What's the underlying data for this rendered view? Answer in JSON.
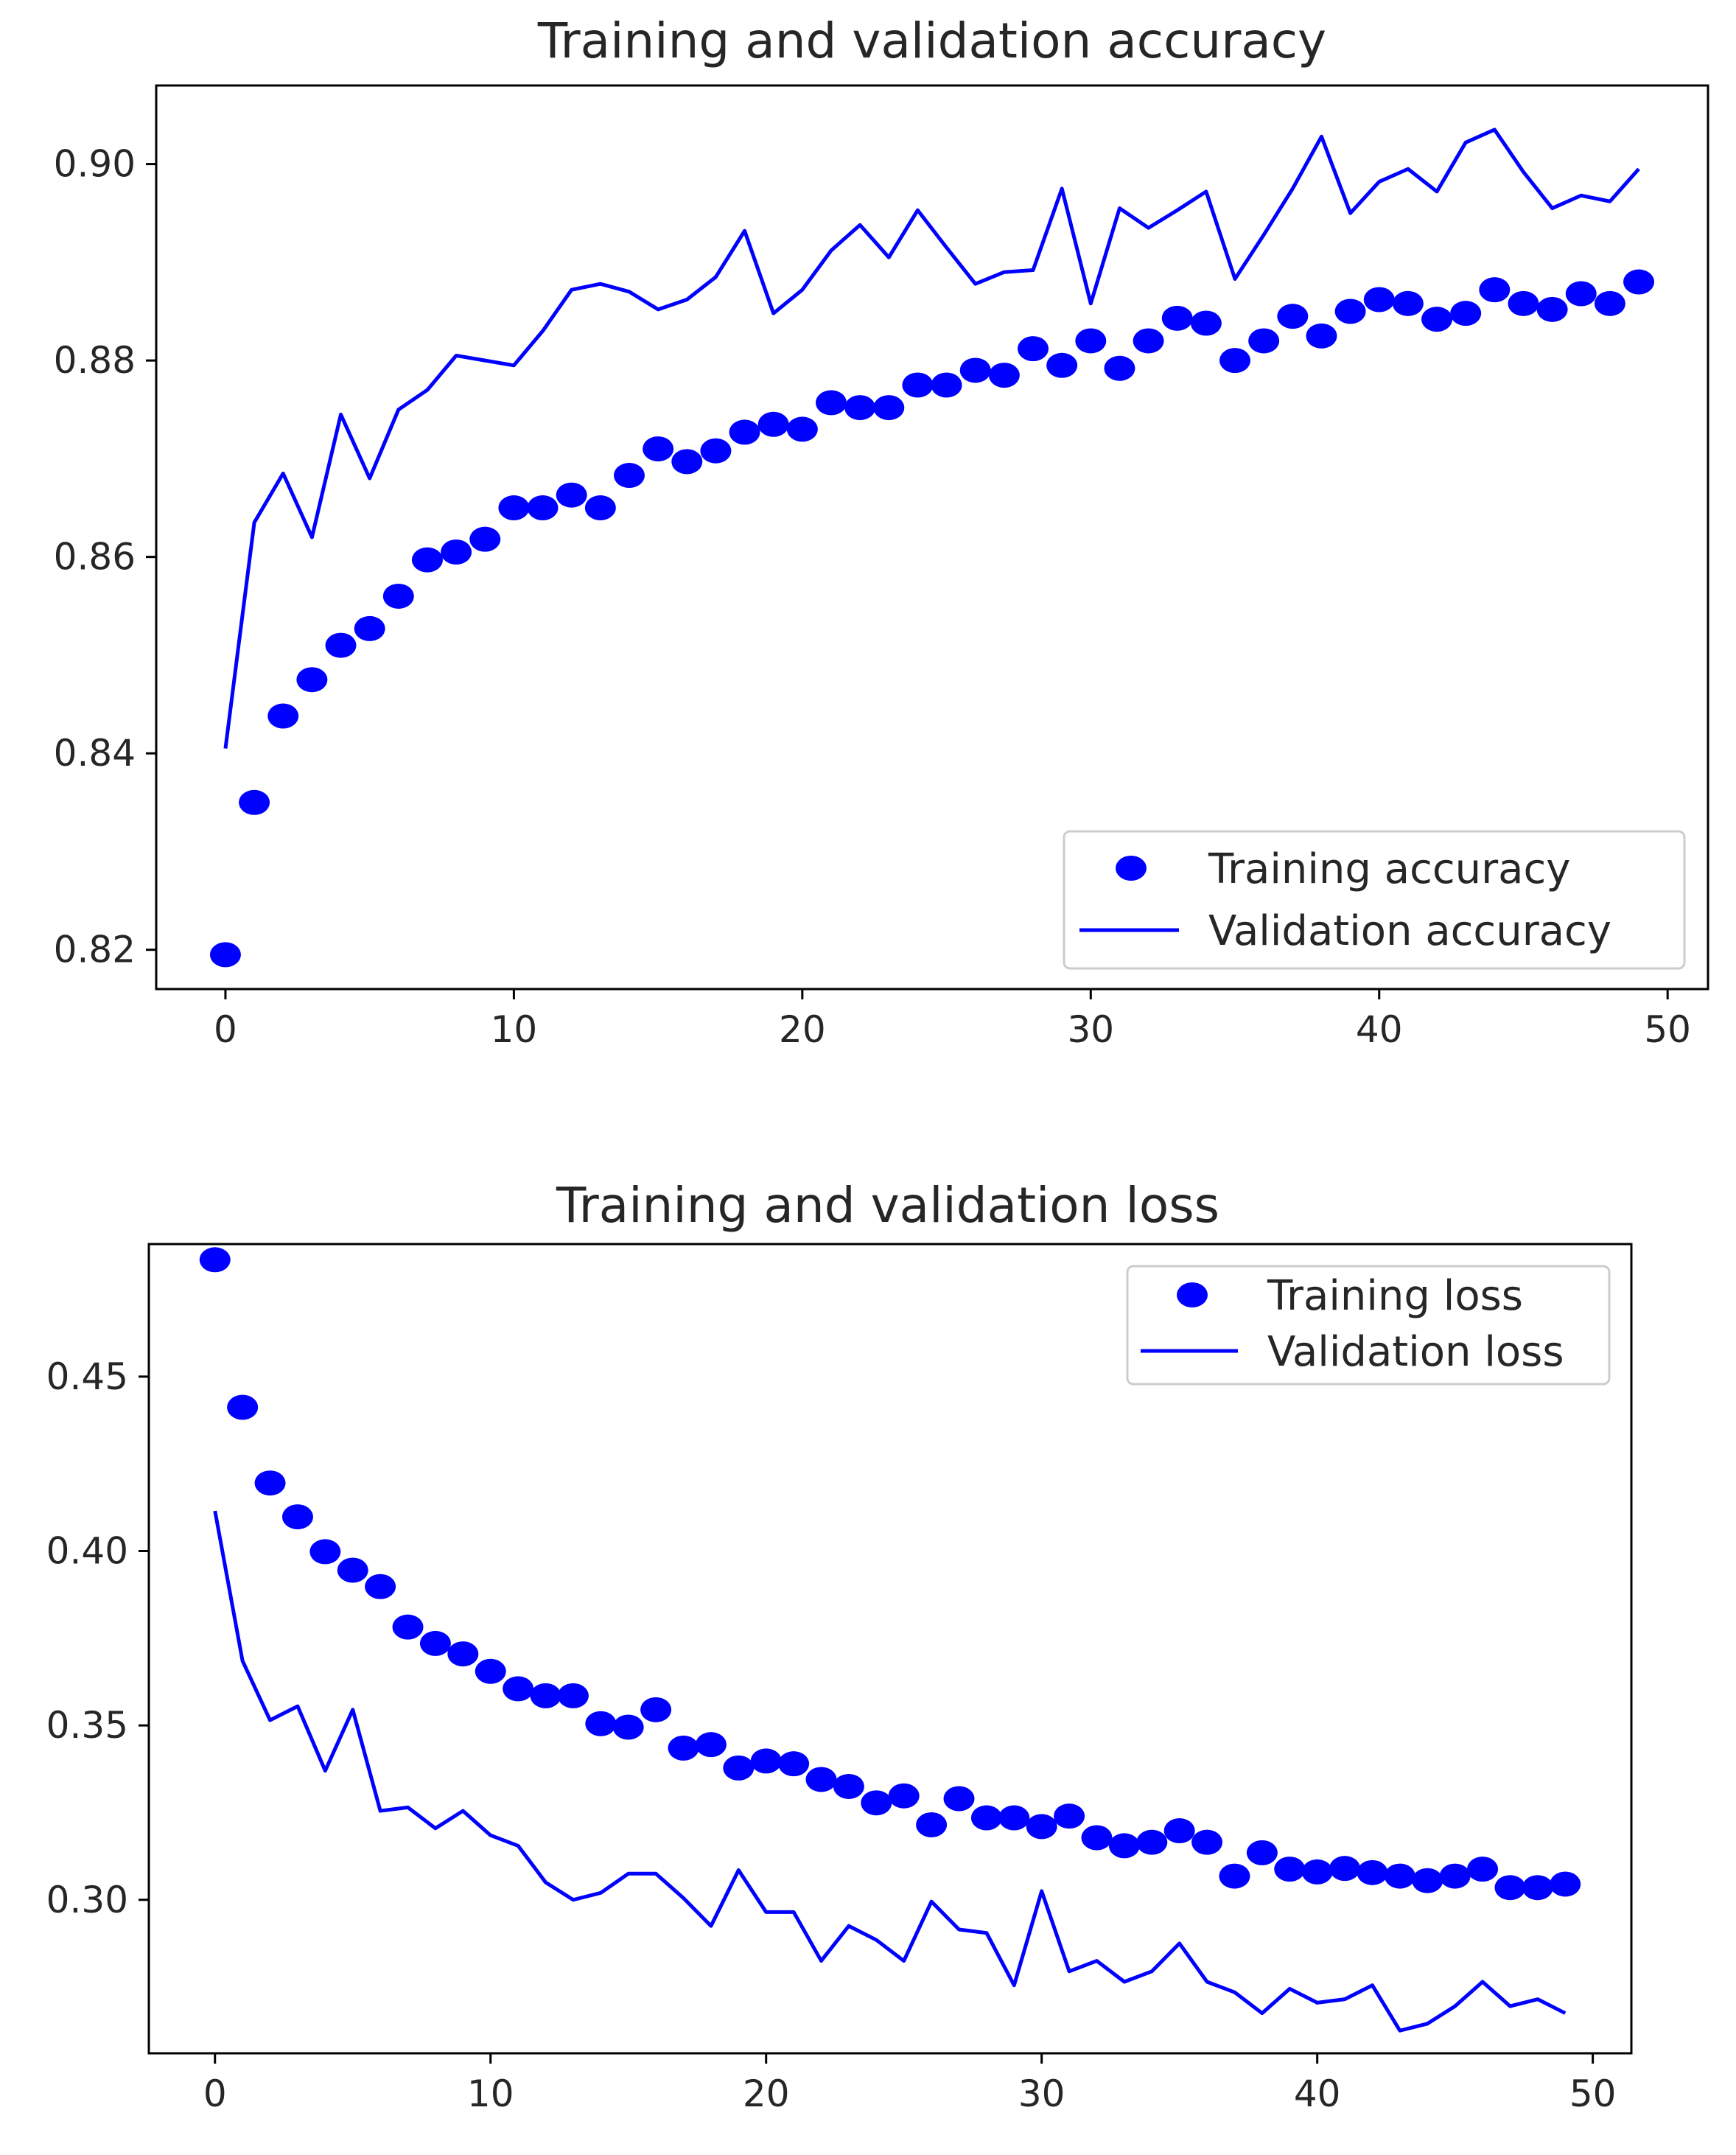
{
  "chart_data": [
    {
      "type": "scatter",
      "title": "Training and validation accuracy",
      "xlabel": "",
      "ylabel": "",
      "xlim": [
        -2.4,
        51.4
      ],
      "ylim": [
        0.816,
        0.908
      ],
      "x_ticks": [
        0,
        10,
        20,
        30,
        40,
        50
      ],
      "y_ticks": [
        0.82,
        0.84,
        0.86,
        0.88,
        0.9
      ],
      "y_tick_labels": [
        "0.82",
        "0.84",
        "0.86",
        "0.88",
        "0.90"
      ],
      "legend_position": "lower-right",
      "x": [
        0,
        1,
        2,
        3,
        4,
        5,
        6,
        7,
        8,
        9,
        10,
        11,
        12,
        13,
        14,
        15,
        16,
        17,
        18,
        19,
        20,
        21,
        22,
        23,
        24,
        25,
        26,
        27,
        28,
        29,
        30,
        31,
        32,
        33,
        34,
        35,
        36,
        37,
        38,
        39,
        40,
        41,
        42,
        43,
        44,
        45,
        46,
        47,
        48,
        49
      ],
      "series": [
        {
          "name": "Training accuracy",
          "style": "dots",
          "color": "#0000ff",
          "values": [
            0.8195,
            0.835,
            0.8438,
            0.8475,
            0.851,
            0.8527,
            0.856,
            0.8597,
            0.8605,
            0.8618,
            0.865,
            0.865,
            0.8663,
            0.865,
            0.8683,
            0.871,
            0.8697,
            0.8708,
            0.8727,
            0.8735,
            0.873,
            0.8757,
            0.8752,
            0.8752,
            0.8775,
            0.8775,
            0.879,
            0.8785,
            0.8812,
            0.8795,
            0.882,
            0.8792,
            0.882,
            0.8843,
            0.8838,
            0.88,
            0.882,
            0.8845,
            0.8825,
            0.885,
            0.8862,
            0.8858,
            0.8842,
            0.8848,
            0.8872,
            0.8858,
            0.8852,
            0.8868,
            0.8858,
            0.888
          ]
        },
        {
          "name": "Validation accuracy",
          "style": "line",
          "color": "#0000ff",
          "values": [
            0.8405,
            0.8635,
            0.8685,
            0.862,
            0.8745,
            0.868,
            0.875,
            0.877,
            0.8805,
            0.88,
            0.8795,
            0.883,
            0.8872,
            0.8878,
            0.887,
            0.8852,
            0.8862,
            0.8885,
            0.8932,
            0.8848,
            0.8872,
            0.8912,
            0.8938,
            0.8905,
            0.8953,
            0.8915,
            0.8878,
            0.889,
            0.8892,
            0.8975,
            0.8858,
            0.8955,
            0.8935,
            0.8953,
            0.8972,
            0.8883,
            0.8928,
            0.8975,
            0.9028,
            0.895,
            0.8982,
            0.8995,
            0.8972,
            0.9022,
            0.9035,
            0.8992,
            0.8955,
            0.8968,
            0.8962,
            0.8995
          ]
        }
      ]
    },
    {
      "type": "scatter",
      "title": "Training and validation loss",
      "xlabel": "",
      "ylabel": "",
      "xlim": [
        -2.4,
        51.4
      ],
      "ylim": [
        0.256,
        0.488
      ],
      "x_ticks": [
        0,
        10,
        20,
        30,
        40,
        50
      ],
      "y_ticks": [
        0.3,
        0.35,
        0.4,
        0.45
      ],
      "y_tick_labels": [
        "0.30",
        "0.35",
        "0.40",
        "0.45"
      ],
      "legend_position": "upper-right",
      "x": [
        0,
        1,
        2,
        3,
        4,
        5,
        6,
        7,
        8,
        9,
        10,
        11,
        12,
        13,
        14,
        15,
        16,
        17,
        18,
        19,
        20,
        21,
        22,
        23,
        24,
        25,
        26,
        27,
        28,
        29,
        30,
        31,
        32,
        33,
        34,
        35,
        36,
        37,
        38,
        39,
        40,
        41,
        42,
        43,
        44,
        45,
        46,
        47,
        48,
        49
      ],
      "series": [
        {
          "name": "Training loss",
          "style": "dots",
          "color": "#0000ff",
          "values": [
            0.4835,
            0.4412,
            0.4195,
            0.4098,
            0.3998,
            0.3945,
            0.3898,
            0.3782,
            0.3735,
            0.3705,
            0.3655,
            0.3605,
            0.3585,
            0.3585,
            0.3505,
            0.3495,
            0.3545,
            0.3435,
            0.3445,
            0.3378,
            0.3398,
            0.339,
            0.3345,
            0.3325,
            0.3278,
            0.3298,
            0.3215,
            0.329,
            0.3235,
            0.3235,
            0.321,
            0.324,
            0.3178,
            0.3155,
            0.3165,
            0.3198,
            0.3165,
            0.3068,
            0.3135,
            0.3088,
            0.308,
            0.309,
            0.3078,
            0.3068,
            0.3055,
            0.3068,
            0.3088,
            0.3035,
            0.3035,
            0.3045
          ]
        },
        {
          "name": "Validation loss",
          "style": "line",
          "color": "#0000ff",
          "values": [
            0.4115,
            0.3685,
            0.3515,
            0.3555,
            0.337,
            0.3545,
            0.3255,
            0.3265,
            0.3205,
            0.3255,
            0.3185,
            0.3155,
            0.305,
            0.3,
            0.302,
            0.3075,
            0.3075,
            0.3005,
            0.2925,
            0.3085,
            0.2965,
            0.2965,
            0.2825,
            0.2925,
            0.2885,
            0.2825,
            0.2995,
            0.2915,
            0.2905,
            0.2755,
            0.3025,
            0.2795,
            0.2825,
            0.2765,
            0.2795,
            0.2875,
            0.2765,
            0.2735,
            0.2675,
            0.2745,
            0.2705,
            0.2715,
            0.2755,
            0.2625,
            0.2645,
            0.2695,
            0.2765,
            0.2695,
            0.2715,
            0.2675
          ]
        }
      ]
    }
  ]
}
